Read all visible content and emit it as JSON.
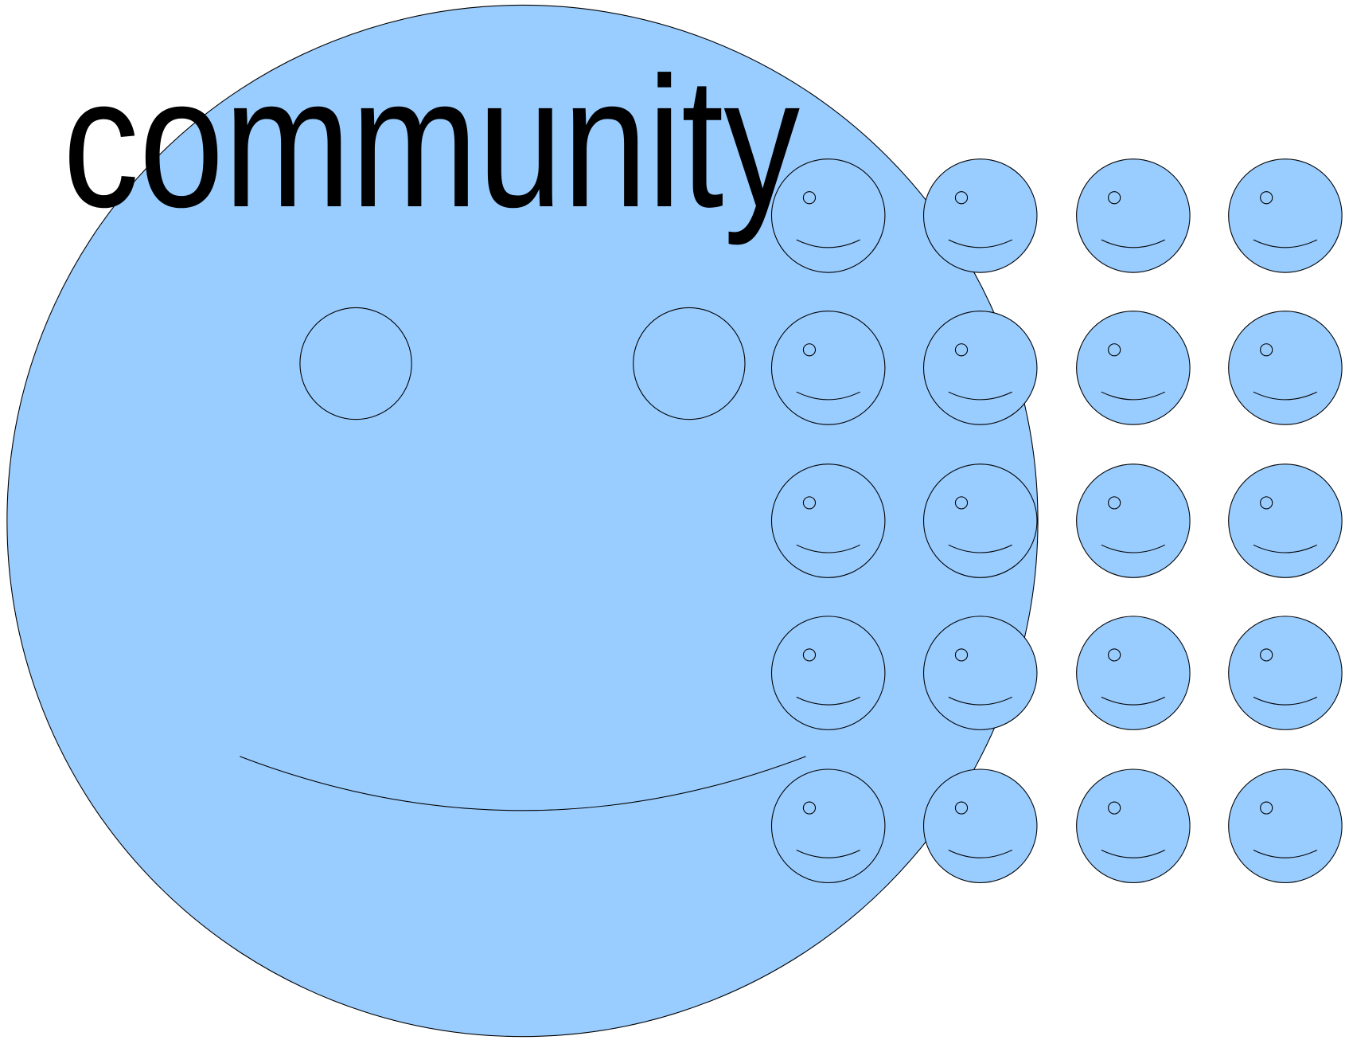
{
  "title": "community"
}
